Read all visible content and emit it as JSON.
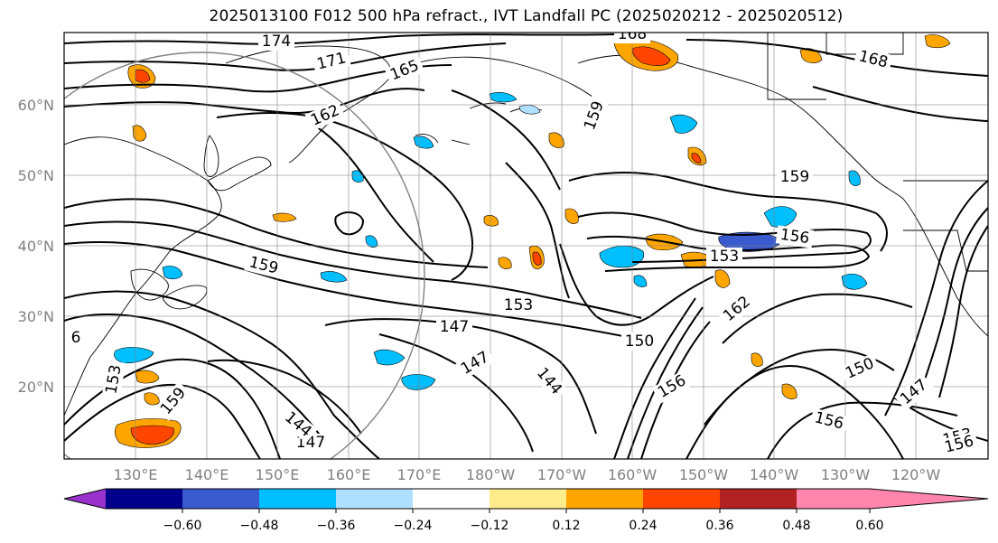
{
  "title": "2025013100 F012 500 hPa refract., IVT Landfall PC (2025020212 - 2025020512)",
  "lat_labels": [
    "60°N",
    "50°N",
    "40°N",
    "30°N",
    "20°N"
  ],
  "lon_labels": [
    "130°E",
    "140°E",
    "150°E",
    "160°E",
    "170°E",
    "180°W",
    "170°W",
    "160°W",
    "150°W",
    "140°W",
    "130°W",
    "120°W"
  ],
  "colorbar": {
    "colors": [
      "#9932cc",
      "#00008b",
      "#3a5bcf",
      "#00bfff",
      "#b0e0ff",
      "#ffffff",
      "#ffec8b",
      "#ffa500",
      "#ff4500",
      "#b22222",
      "#ff85ad"
    ],
    "tick_labels": [
      "−0.60",
      "−0.48",
      "−0.36",
      "−0.24",
      "−0.12",
      "0.12",
      "0.24",
      "0.36",
      "0.48",
      "0.60"
    ]
  },
  "contour_labels": [
    "174",
    "171",
    "165",
    "168",
    "168",
    "162",
    "159",
    "159",
    "156",
    "159",
    "153",
    "153",
    "147",
    "150",
    "162",
    "147",
    "144",
    "147",
    "144",
    "150",
    "147",
    "153",
    "156",
    "156",
    "156",
    "6",
    "153",
    "159"
  ]
}
